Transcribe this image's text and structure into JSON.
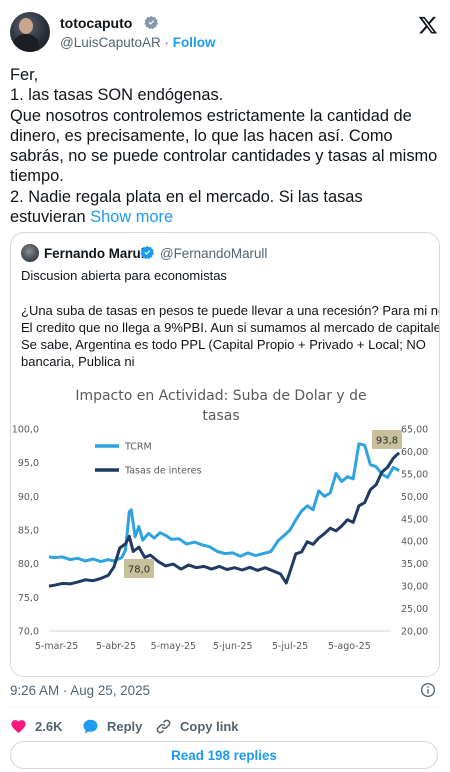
{
  "author": {
    "display_name": "totocaputo",
    "handle": "@LuisCaputoAR",
    "separator": "·",
    "follow_label": "Follow"
  },
  "tweet": {
    "lines": [
      "Fer,",
      "1. las tasas SON endógenas.",
      "Que nosotros controlemos estrictamente la cantidad de",
      "dinero, es precisamente, lo que las hacen así. Como",
      "sabrás, no se puede controlar cantidades y tasas al mismo",
      "tiempo.",
      "2. Nadie regala plata en el mercado. Si las tasas",
      "estuvieran"
    ],
    "show_more": "Show more"
  },
  "quote": {
    "display_name": "Fernando Marull",
    "handle": "@FernandoMarull",
    "lines": [
      "Discusion abierta para economistas",
      "",
      "¿Una suba de tasas en pesos te puede llevar a una recesión? Para mi no.",
      "El credito que no llega a 9%PBI. Aun si sumamos al mercado de capitales.",
      "Se sabe, Argentina es todo PPL (Capital Propio + Privado + Local; NO",
      "bancaria, Publica ni"
    ]
  },
  "chart_data": {
    "type": "line",
    "title_lines": [
      "Impacto en Actividad: Suba de Dolar y de",
      "tasas"
    ],
    "x_ticks": [
      "5-mar-25",
      "5-abr-25",
      "5-may-25",
      "5-jun-25",
      "5-jul-25",
      "5-ago-25"
    ],
    "left_axis": {
      "ticks": [
        "100,0",
        "95,0",
        "90,0",
        "85,0",
        "80,0",
        "75,0",
        "70,0"
      ],
      "range": [
        70,
        100
      ]
    },
    "right_axis": {
      "ticks": [
        "65,00",
        "60,00",
        "55,00",
        "50,00",
        "45,00",
        "40,00",
        "35,00",
        "30,00",
        "25,00",
        "20,00"
      ],
      "range": [
        20,
        65
      ]
    },
    "grid": false,
    "legend": "top-left",
    "annotations": [
      "78,0",
      "93,8"
    ],
    "series": [
      {
        "name": "TCRM",
        "axis": "left",
        "color": "#2ea3e0",
        "points": [
          [
            "2025-03-01",
            81.0
          ],
          [
            "2025-03-04",
            80.9
          ],
          [
            "2025-03-08",
            81.0
          ],
          [
            "2025-03-12",
            80.6
          ],
          [
            "2025-03-16",
            80.8
          ],
          [
            "2025-03-20",
            80.4
          ],
          [
            "2025-03-24",
            80.7
          ],
          [
            "2025-03-28",
            80.3
          ],
          [
            "2025-04-01",
            80.6
          ],
          [
            "2025-04-04",
            80.4
          ],
          [
            "2025-04-08",
            80.9
          ],
          [
            "2025-04-10",
            82.0
          ],
          [
            "2025-04-12",
            87.7
          ],
          [
            "2025-04-13",
            88.0
          ],
          [
            "2025-04-15",
            84.0
          ],
          [
            "2025-04-17",
            85.5
          ],
          [
            "2025-04-19",
            83.5
          ],
          [
            "2025-04-22",
            84.5
          ],
          [
            "2025-04-25",
            83.8
          ],
          [
            "2025-04-28",
            84.6
          ],
          [
            "2025-05-01",
            84.2
          ],
          [
            "2025-05-04",
            83.6
          ],
          [
            "2025-05-08",
            83.7
          ],
          [
            "2025-05-12",
            82.9
          ],
          [
            "2025-05-16",
            83.2
          ],
          [
            "2025-05-20",
            82.8
          ],
          [
            "2025-05-24",
            82.5
          ],
          [
            "2025-05-28",
            81.8
          ],
          [
            "2025-06-01",
            81.5
          ],
          [
            "2025-06-05",
            81.6
          ],
          [
            "2025-06-09",
            81.1
          ],
          [
            "2025-06-13",
            81.6
          ],
          [
            "2025-06-17",
            81.2
          ],
          [
            "2025-06-21",
            81.5
          ],
          [
            "2025-06-25",
            81.8
          ],
          [
            "2025-06-29",
            83.5
          ],
          [
            "2025-07-02",
            84.2
          ],
          [
            "2025-07-05",
            85.0
          ],
          [
            "2025-07-08",
            86.5
          ],
          [
            "2025-07-11",
            87.8
          ],
          [
            "2025-07-14",
            88.6
          ],
          [
            "2025-07-17",
            88.0
          ],
          [
            "2025-07-20",
            90.8
          ],
          [
            "2025-07-23",
            90.0
          ],
          [
            "2025-07-26",
            90.5
          ],
          [
            "2025-07-29",
            93.4
          ],
          [
            "2025-08-01",
            92.2
          ],
          [
            "2025-08-04",
            92.9
          ],
          [
            "2025-08-07",
            92.6
          ],
          [
            "2025-08-10",
            97.8
          ],
          [
            "2025-08-13",
            97.6
          ],
          [
            "2025-08-16",
            94.7
          ],
          [
            "2025-08-19",
            94.4
          ],
          [
            "2025-08-22",
            93.3
          ],
          [
            "2025-08-25",
            92.8
          ],
          [
            "2025-08-28",
            94.3
          ],
          [
            "2025-08-31",
            93.8
          ]
        ]
      },
      {
        "name": "Tasas de interes",
        "axis": "right",
        "color": "#1f3a63",
        "points": [
          [
            "2025-03-01",
            30.0
          ],
          [
            "2025-03-04",
            30.2
          ],
          [
            "2025-03-08",
            30.6
          ],
          [
            "2025-03-12",
            30.5
          ],
          [
            "2025-03-16",
            30.9
          ],
          [
            "2025-03-20",
            31.4
          ],
          [
            "2025-03-24",
            31.2
          ],
          [
            "2025-03-28",
            31.7
          ],
          [
            "2025-04-01",
            32.4
          ],
          [
            "2025-04-04",
            34.3
          ],
          [
            "2025-04-07",
            38.5
          ],
          [
            "2025-04-10",
            39.4
          ],
          [
            "2025-04-12",
            41.1
          ],
          [
            "2025-04-14",
            37.7
          ],
          [
            "2025-04-17",
            38.7
          ],
          [
            "2025-04-20",
            36.4
          ],
          [
            "2025-04-23",
            36.9
          ],
          [
            "2025-04-27",
            35.5
          ],
          [
            "2025-05-01",
            34.5
          ],
          [
            "2025-05-05",
            34.9
          ],
          [
            "2025-05-09",
            33.8
          ],
          [
            "2025-05-13",
            34.7
          ],
          [
            "2025-05-17",
            34.1
          ],
          [
            "2025-05-21",
            34.4
          ],
          [
            "2025-05-25",
            33.8
          ],
          [
            "2025-05-29",
            34.4
          ],
          [
            "2025-06-02",
            33.7
          ],
          [
            "2025-06-06",
            34.1
          ],
          [
            "2025-06-10",
            33.6
          ],
          [
            "2025-06-14",
            34.2
          ],
          [
            "2025-06-18",
            33.5
          ],
          [
            "2025-06-22",
            34.1
          ],
          [
            "2025-06-26",
            33.4
          ],
          [
            "2025-06-30",
            32.7
          ],
          [
            "2025-07-03",
            30.7
          ],
          [
            "2025-07-05",
            33.2
          ],
          [
            "2025-07-08",
            37.2
          ],
          [
            "2025-07-11",
            37.6
          ],
          [
            "2025-07-14",
            39.9
          ],
          [
            "2025-07-17",
            39.3
          ],
          [
            "2025-07-20",
            40.7
          ],
          [
            "2025-07-23",
            41.7
          ],
          [
            "2025-07-26",
            42.9
          ],
          [
            "2025-07-29",
            42.3
          ],
          [
            "2025-08-01",
            43.4
          ],
          [
            "2025-08-04",
            44.8
          ],
          [
            "2025-08-07",
            44.2
          ],
          [
            "2025-08-10",
            47.9
          ],
          [
            "2025-08-13",
            48.6
          ],
          [
            "2025-08-16",
            51.5
          ],
          [
            "2025-08-19",
            52.6
          ],
          [
            "2025-08-22",
            55.4
          ],
          [
            "2025-08-25",
            56.5
          ],
          [
            "2025-08-28",
            58.5
          ],
          [
            "2025-08-31",
            59.7
          ]
        ]
      }
    ]
  },
  "meta": {
    "timestamp": "9:26 AM · Aug 25, 2025"
  },
  "actions": {
    "likes": "2.6K",
    "reply_label": "Reply",
    "copy_label": "Copy link"
  },
  "read_replies_label": "Read 198 replies"
}
